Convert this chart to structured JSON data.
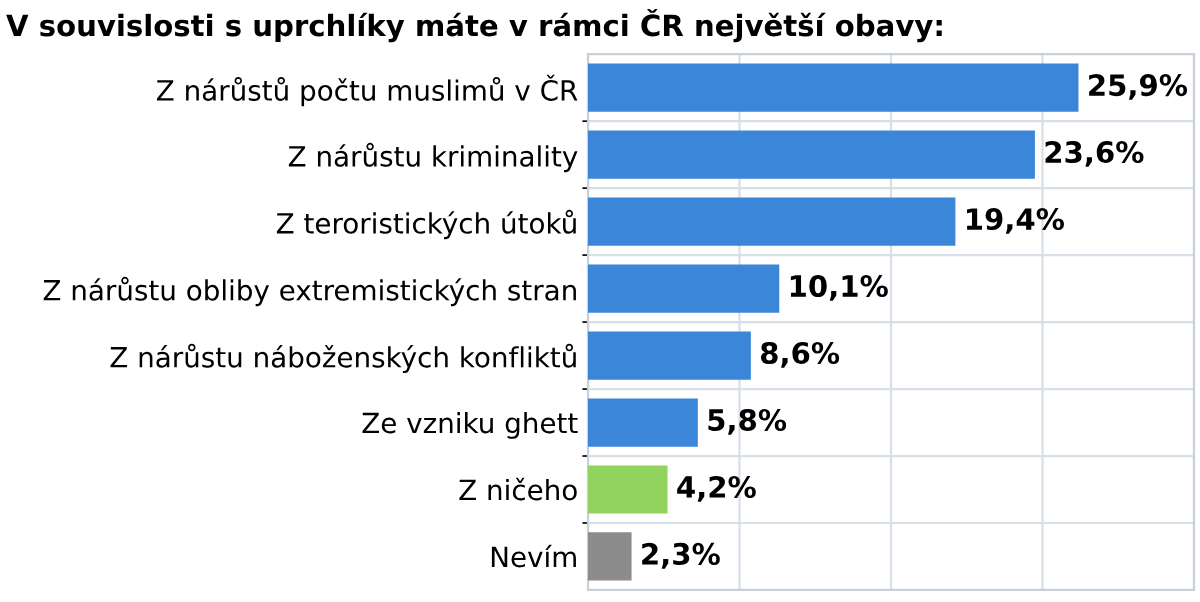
{
  "chart_data": {
    "type": "bar",
    "orientation": "horizontal",
    "title": "V souvislosti s uprchlíky máte v rámci ČR největší obavy:",
    "categories": [
      "Z nárůstů počtu muslimů v ČR",
      "Z nárůstu kriminality",
      "Z teroristických útoků",
      "Z nárůstu obliby extremistických stran",
      "Z nárůstu náboženských konfliktů",
      "Ze vzniku ghett",
      "Z ničeho",
      "Nevím"
    ],
    "values": [
      25.9,
      23.6,
      19.4,
      10.1,
      8.6,
      5.8,
      4.2,
      2.3
    ],
    "colors": [
      "#3b86d8",
      "#3b86d8",
      "#3b86d8",
      "#3b86d8",
      "#3b86d8",
      "#3b86d8",
      "#92d35e",
      "#8c8c8c"
    ],
    "value_labels": [
      "25,9%",
      "23,6%",
      "19,4%",
      "10,1%",
      "8,6%",
      "5,8%",
      "4,2%",
      "2,3%"
    ],
    "xlim": [
      0,
      32
    ],
    "xticks": [
      0,
      8,
      16,
      24,
      32
    ],
    "tick_labels": "y",
    "grid": true
  }
}
